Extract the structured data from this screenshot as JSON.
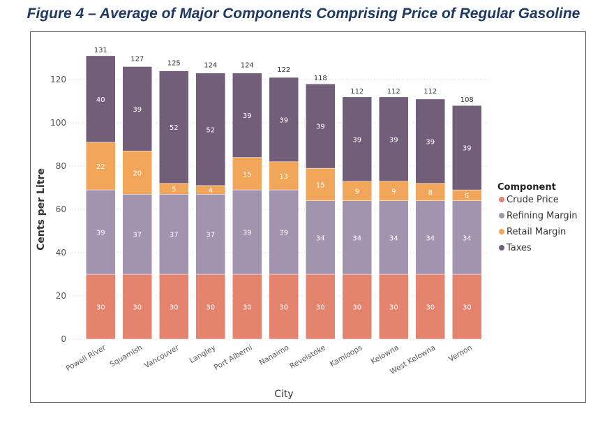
{
  "title": "Figure 4 – Average of Major Components Comprising Price of Regular Gasoline",
  "chart_data": {
    "type": "bar",
    "stacked": true,
    "xlabel": "City",
    "ylabel": "Cents per Litre",
    "ylim": [
      0,
      130
    ],
    "yticks": [
      0,
      20,
      40,
      60,
      80,
      100,
      120
    ],
    "grid": "horizontal dotted",
    "legend_title": "Component",
    "legend_position": "right",
    "categories": [
      "Powell River",
      "Squamish",
      "Vancouver",
      "Langley",
      "Port Alberni",
      "Nanaimo",
      "Revelstoke",
      "Kamloops",
      "Kelowna",
      "West Kelowna",
      "Vernon"
    ],
    "series": [
      {
        "name": "Crude Price",
        "color": "#E5846E",
        "values": [
          30,
          30,
          30,
          30,
          30,
          30,
          30,
          30,
          30,
          30,
          30
        ]
      },
      {
        "name": "Refining Margin",
        "color": "#A294AE",
        "values": [
          39,
          37,
          37,
          37,
          39,
          39,
          34,
          34,
          34,
          34,
          34
        ]
      },
      {
        "name": "Retail Margin",
        "color": "#F2A65A",
        "values": [
          22,
          20,
          5,
          4,
          15,
          13,
          15,
          9,
          9,
          8,
          5
        ]
      },
      {
        "name": "Taxes",
        "color": "#735E7A",
        "values": [
          40,
          39,
          52,
          52,
          39,
          39,
          39,
          39,
          39,
          39,
          39
        ]
      }
    ],
    "totals": [
      131,
      127,
      125,
      124,
      124,
      122,
      118,
      112,
      112,
      112,
      108
    ]
  }
}
